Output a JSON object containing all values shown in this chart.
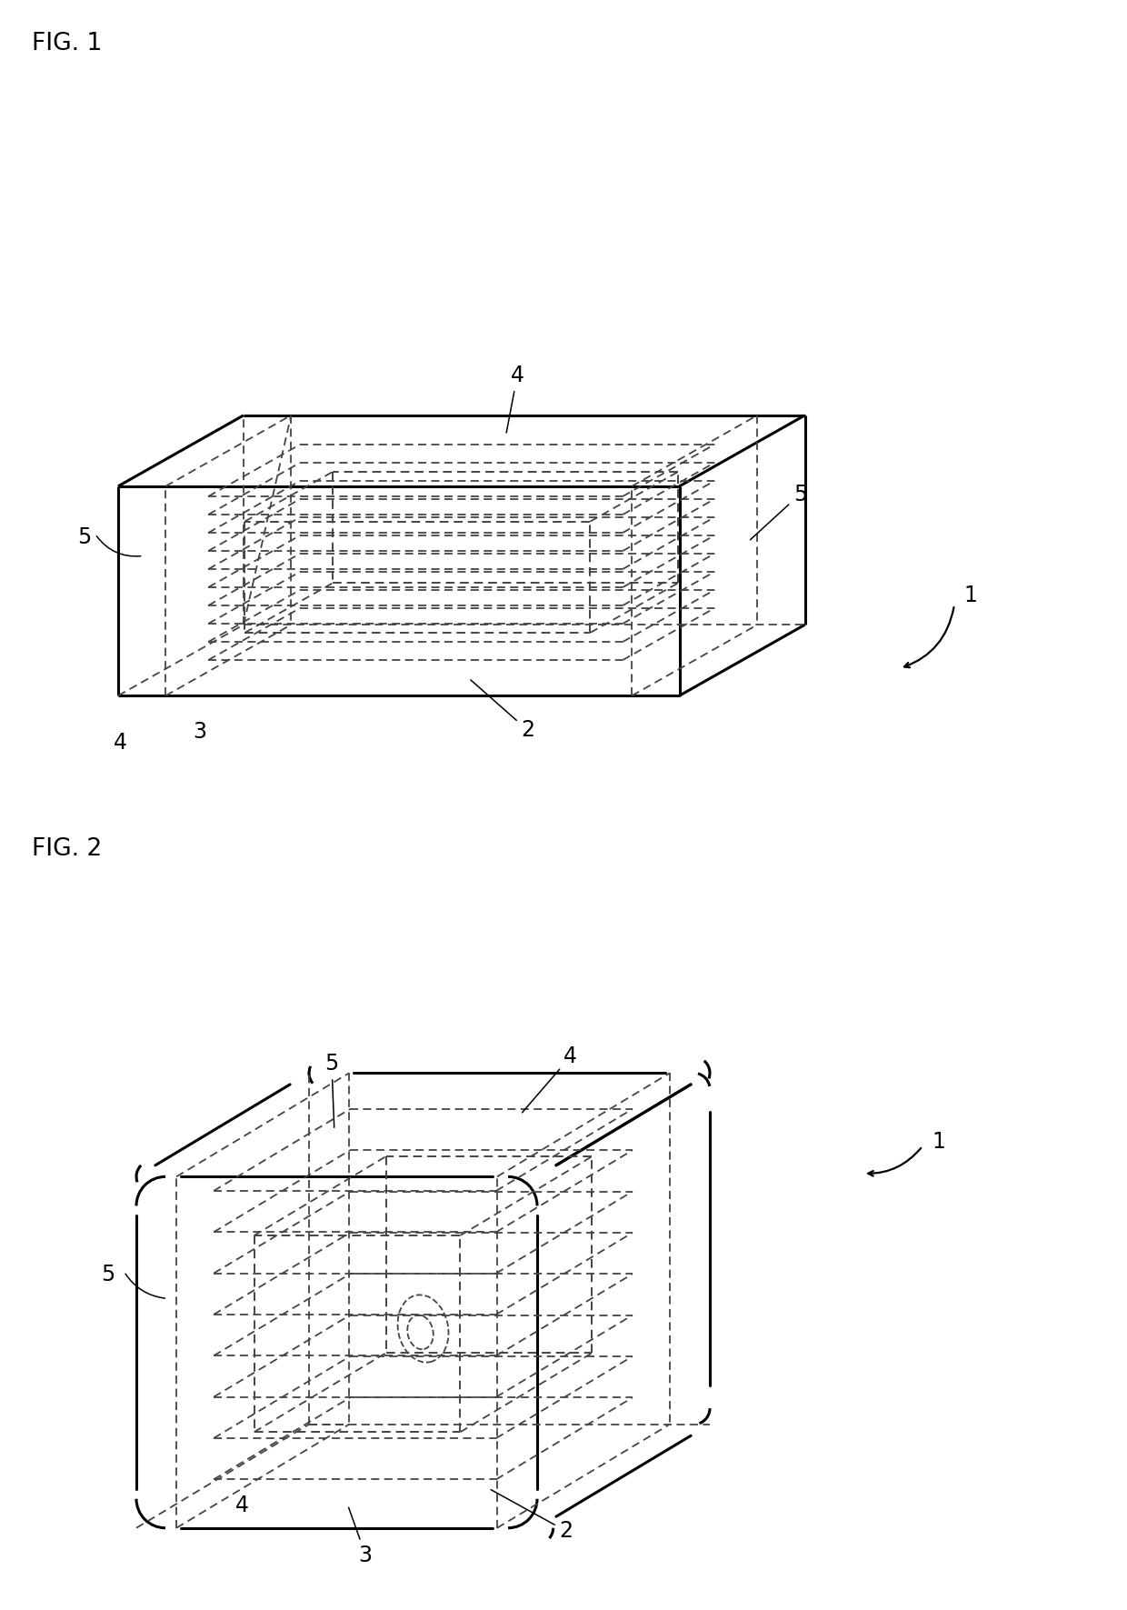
{
  "bg_color": "#ffffff",
  "line_color": "#000000",
  "dashed_color": "#444444",
  "fig1_label": "FIG. 1",
  "fig2_label": "FIG. 2",
  "fontsize_label": 17,
  "fontsize_fig": 19,
  "lw_main": 2.2,
  "lw_dash": 1.3
}
